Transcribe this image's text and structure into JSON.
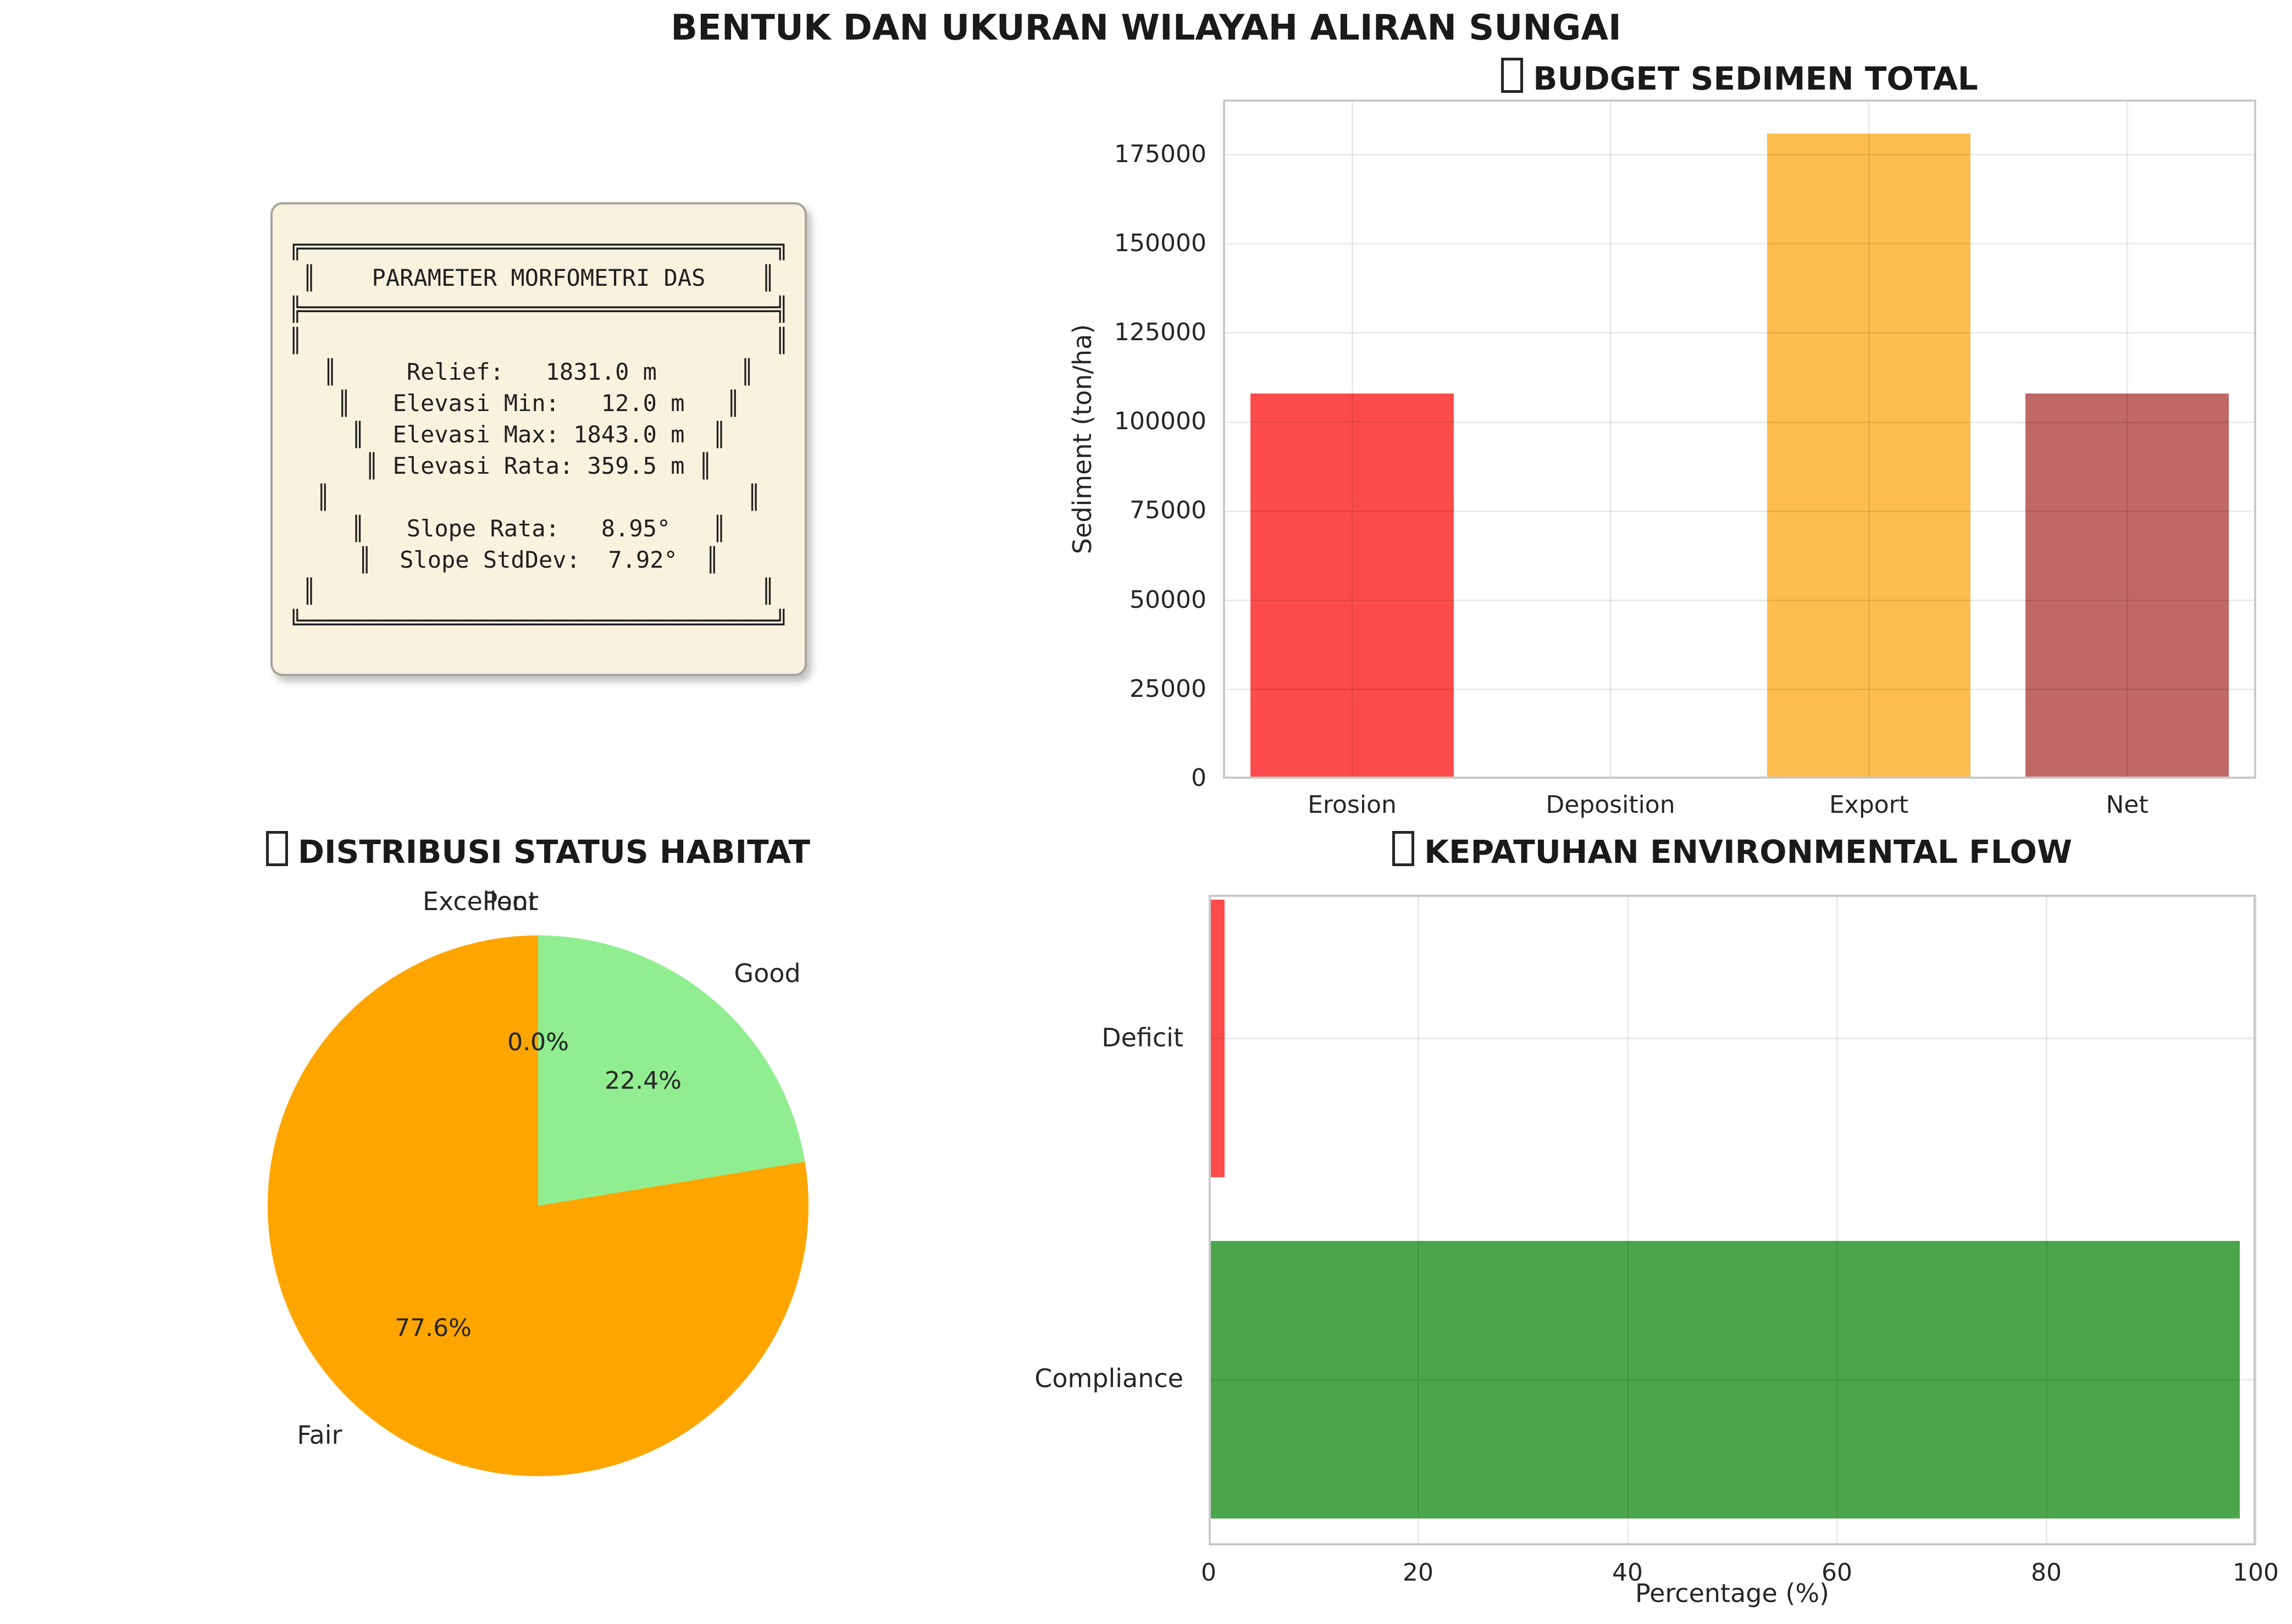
{
  "figure": {
    "title": "BENTUK DAN UKURAN WILAYAH ALIRAN SUNGAI"
  },
  "param_box": {
    "text": "╔══════════════════════════════════╗\n║    PARAMETER MORFOMETRI DAS    ║\n╠══════════════════════════════════╣\n║                                  ║\n║     Relief:   1831.0 m      ║\n║   Elevasi Min:   12.0 m   ║\n║  Elevasi Max: 1843.0 m  ║\n║ Elevasi Rata: 359.5 m ║\n║                              ║\n║   Slope Rata:   8.95°   ║\n║  Slope StdDev:  7.92°  ║\n║                                ║\n╚══════════════════════════════════╝"
  },
  "chart_data": [
    {
      "type": "bar",
      "title": "BUDGET SEDIMEN TOTAL",
      "title_has_missing_glyph": true,
      "categories": [
        "Erosion",
        "Deposition",
        "Export",
        "Net"
      ],
      "values": [
        108000,
        0,
        181000,
        108000
      ],
      "bar_colors": [
        "#fb4b4b",
        "#fb4b4b",
        "#fdbe4d",
        "#c06767"
      ],
      "ylabel": "Sediment (ton/ha)",
      "yticks": [
        0,
        25000,
        50000,
        75000,
        100000,
        125000,
        150000,
        175000
      ],
      "ylim": [
        0,
        190500
      ],
      "grid": true,
      "legend": "none"
    },
    {
      "type": "pie",
      "title": "DISTRIBUSI STATUS HABITAT",
      "title_has_missing_glyph": true,
      "labels": [
        "Excellent",
        "Good",
        "Fair",
        "Poor"
      ],
      "values_pct": [
        0.0,
        22.4,
        77.6,
        0.0
      ],
      "colors": [
        null,
        "#90ee90",
        "#ffa500",
        null
      ],
      "pct_labels": [
        "0.0%",
        "22.4%",
        "77.6%",
        "0.0%"
      ],
      "start_angle_deg": 90,
      "direction": "clockwise"
    },
    {
      "type": "barh",
      "title": "KEPATUHAN ENVIRONMENTAL FLOW",
      "title_has_missing_glyph": true,
      "categories": [
        "Deficit",
        "Compliance"
      ],
      "values": [
        1.5,
        98.5
      ],
      "bar_colors": [
        "#fb4b4b",
        "#4ba64b"
      ],
      "xlabel": "Percentage (%)",
      "xticks": [
        0,
        20,
        40,
        60,
        80,
        100
      ],
      "xlim": [
        0,
        100
      ],
      "grid": true,
      "legend": "none"
    }
  ]
}
